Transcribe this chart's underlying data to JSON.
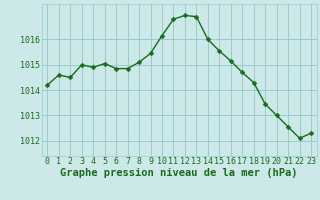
{
  "x": [
    0,
    1,
    2,
    3,
    4,
    5,
    6,
    7,
    8,
    9,
    10,
    11,
    12,
    13,
    14,
    15,
    16,
    17,
    18,
    19,
    20,
    21,
    22,
    23
  ],
  "y": [
    1014.2,
    1014.6,
    1014.5,
    1015.0,
    1014.9,
    1015.05,
    1014.85,
    1014.85,
    1015.1,
    1015.45,
    1016.15,
    1016.8,
    1016.95,
    1016.9,
    1016.0,
    1015.55,
    1015.15,
    1014.7,
    1014.3,
    1013.45,
    1013.0,
    1012.55,
    1012.1,
    1012.3
  ],
  "line_color": "#1a6b1a",
  "marker": "D",
  "marker_size": 2.5,
  "bg_color": "#cce8e8",
  "grid_color": "#99cccc",
  "xlabel": "Graphe pression niveau de la mer (hPa)",
  "xlabel_fontsize": 7.5,
  "tick_color": "#1a6b1a",
  "tick_fontsize": 6.0,
  "yticks": [
    1012,
    1013,
    1014,
    1015,
    1016
  ],
  "ylim": [
    1011.4,
    1017.4
  ],
  "xlim": [
    -0.5,
    23.5
  ],
  "linewidth": 1.0
}
